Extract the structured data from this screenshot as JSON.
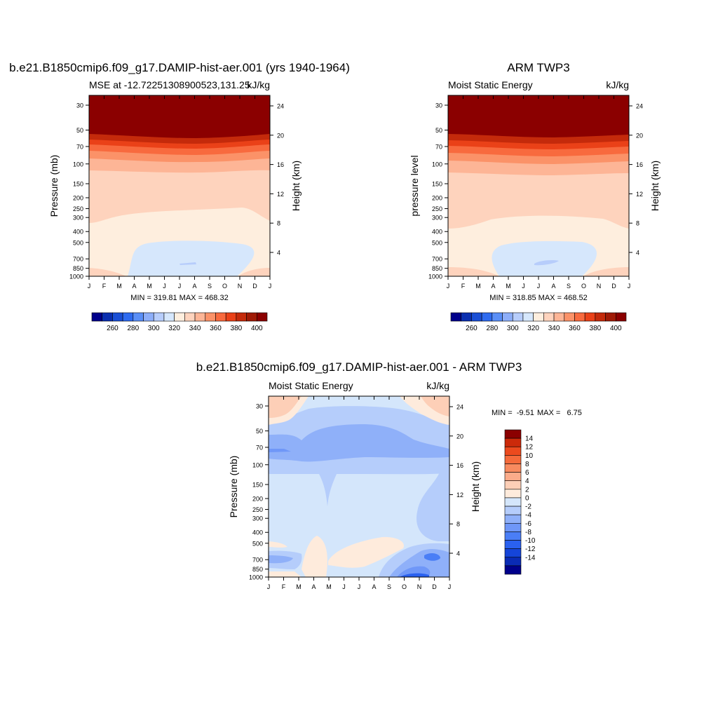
{
  "months": [
    "J",
    "F",
    "M",
    "A",
    "M",
    "J",
    "J",
    "A",
    "S",
    "O",
    "N",
    "D",
    "J"
  ],
  "pressure_ticks": [
    "30",
    "50",
    "70",
    "100",
    "150",
    "200",
    "250",
    "300",
    "400",
    "500",
    "700",
    "850",
    "1000"
  ],
  "pressure_values": [
    30,
    50,
    70,
    100,
    150,
    200,
    250,
    300,
    400,
    500,
    700,
    850,
    1000
  ],
  "height_ticks": [
    "4",
    "8",
    "12",
    "16",
    "20",
    "24"
  ],
  "height_values": [
    4,
    8,
    12,
    16,
    20,
    24
  ],
  "colors": {
    "mse_levels": [
      "#00008b",
      "#0a2fb0",
      "#1a4fd6",
      "#2e6bf0",
      "#5a8ff7",
      "#8daef9",
      "#b7cdfb",
      "#d6e7fc",
      "#feeede",
      "#fed3bd",
      "#fdb596",
      "#fb9268",
      "#f86a3e",
      "#ea4118",
      "#c42a0b",
      "#a01a06",
      "#8b0000"
    ],
    "diff_levels": [
      "#00008b",
      "#0a2bb5",
      "#1545d9",
      "#2a61ef",
      "#4a7ef6",
      "#6f97f8",
      "#8fb0f9",
      "#b5cdfb",
      "#d4e6fb",
      "#feebdc",
      "#fdcfb7",
      "#fbab8a",
      "#f88a5f",
      "#f56a3b",
      "#ec4a1e",
      "#cc2a0a",
      "#8b0000"
    ]
  },
  "chart_data": [
    {
      "type": "heatmap",
      "title": "b.e21.B1850cmip6.f09_g17.DAMIP-hist-aer.001 (yrs 1940-1964)",
      "left_title": "MSE at -12.72251308900523,131.25",
      "right_title": "kJ/kg",
      "ylabel": "Pressure (mb)",
      "right_ylabel": "Height (km)",
      "stats": "MIN = 319.81 MAX = 468.32",
      "colorbar_labels": [
        "260",
        "280",
        "300",
        "320",
        "340",
        "360",
        "380",
        "400"
      ],
      "contour_levels": [
        250,
        260,
        270,
        280,
        290,
        300,
        310,
        320,
        330,
        340,
        350,
        360,
        370,
        380,
        390,
        400
      ],
      "x": [
        "J",
        "F",
        "M",
        "A",
        "M",
        "J",
        "J",
        "A",
        "S",
        "O",
        "N",
        "D",
        "J"
      ],
      "min": 319.81,
      "max": 468.32
    },
    {
      "type": "heatmap",
      "title": "ARM TWP3",
      "left_title": "Moist Static Energy",
      "right_title": "kJ/kg",
      "ylabel": "pressure level",
      "right_ylabel": "Height (km)",
      "stats": "MIN = 318.85 MAX = 468.52",
      "colorbar_labels": [
        "260",
        "280",
        "300",
        "320",
        "340",
        "360",
        "380",
        "400"
      ],
      "contour_levels": [
        250,
        260,
        270,
        280,
        290,
        300,
        310,
        320,
        330,
        340,
        350,
        360,
        370,
        380,
        390,
        400
      ],
      "x": [
        "J",
        "F",
        "M",
        "A",
        "M",
        "J",
        "J",
        "A",
        "S",
        "O",
        "N",
        "D",
        "J"
      ],
      "min": 318.85,
      "max": 468.52
    },
    {
      "type": "heatmap",
      "title": "b.e21.B1850cmip6.f09_g17.DAMIP-hist-aer.001 - ARM TWP3",
      "left_title": "Moist Static Energy",
      "right_title": "kJ/kg",
      "ylabel": "Pressure (mb)",
      "right_ylabel": "Height (km)",
      "stats_min": "MIN =  -9.51",
      "stats_max": "MAX =   6.75",
      "colorbar_labels": [
        "14",
        "12",
        "10",
        "8",
        "6",
        "4",
        "2",
        "0",
        "-2",
        "-4",
        "-6",
        "-8",
        "-10",
        "-12",
        "-14"
      ],
      "contour_levels": [
        -14,
        -12,
        -10,
        -8,
        -6,
        -4,
        -2,
        0,
        2,
        4,
        6,
        8,
        10,
        12,
        14
      ],
      "x": [
        "J",
        "F",
        "M",
        "A",
        "M",
        "J",
        "J",
        "A",
        "S",
        "O",
        "N",
        "D",
        "J"
      ],
      "min": -9.51,
      "max": 6.75
    }
  ]
}
